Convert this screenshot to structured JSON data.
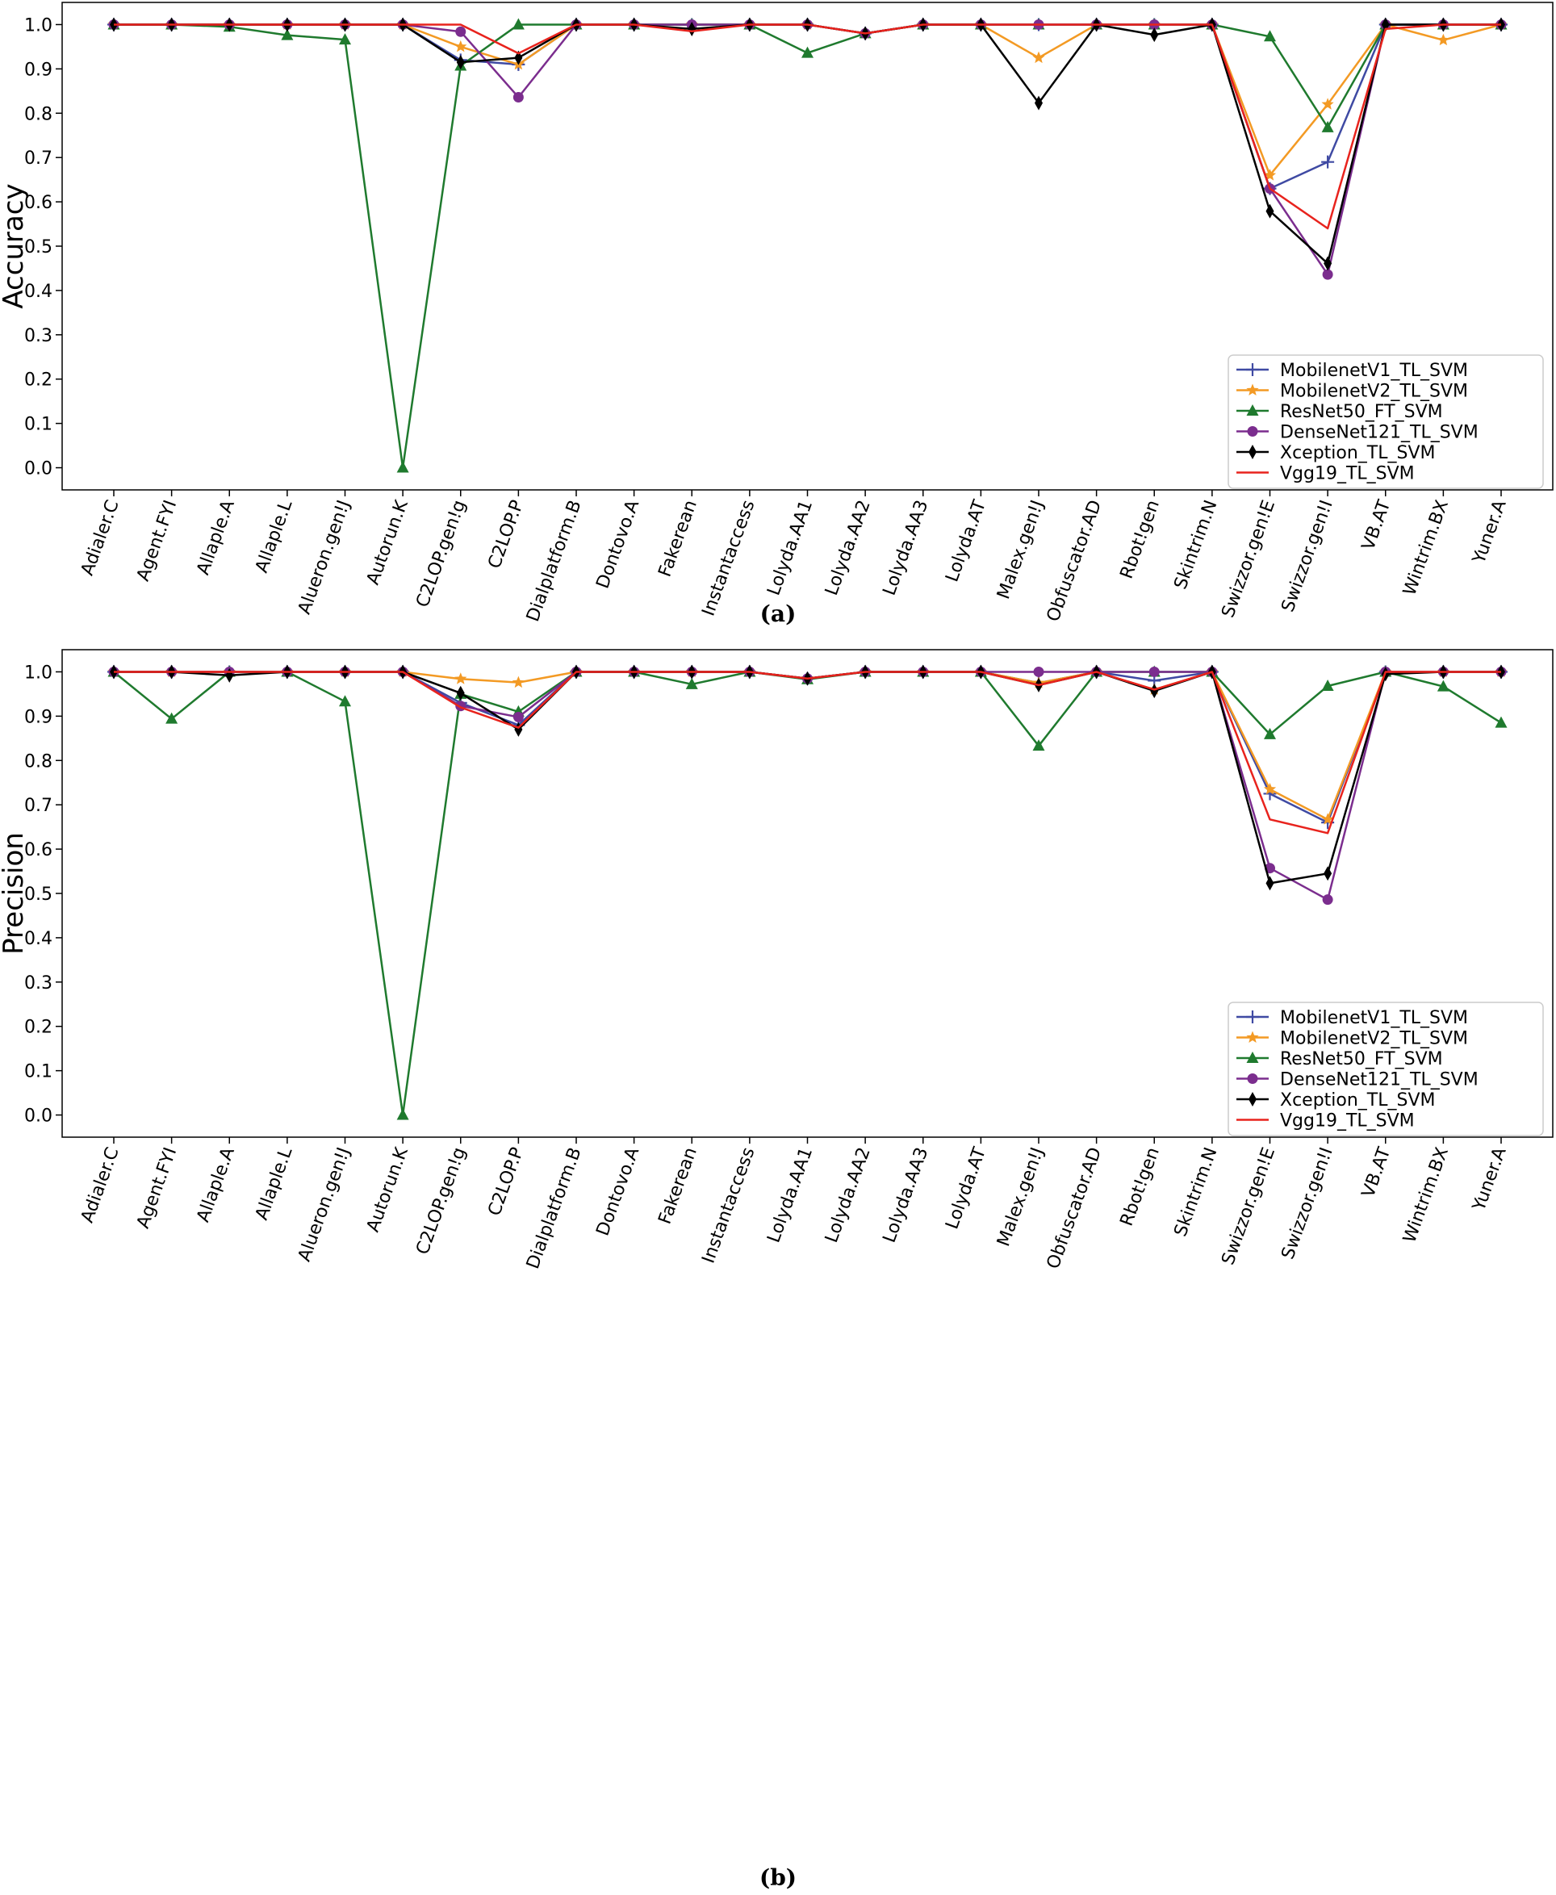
{
  "chart_data": [
    {
      "type": "line",
      "caption": "(a)",
      "title": "",
      "xlabel": "",
      "ylabel": "Accuracy",
      "ylim": [
        -0.05,
        1.05
      ],
      "yticks": [
        "0.0",
        "0.1",
        "0.2",
        "0.3",
        "0.4",
        "0.5",
        "0.6",
        "0.7",
        "0.8",
        "0.9",
        "1.0"
      ],
      "legend_position": "lower-right",
      "categories": [
        "Adialer.C",
        "Agent.FYI",
        "Allaple.A",
        "Allaple.L",
        "Alueron.gen!J",
        "Autorun.K",
        "C2LOP.gen!g",
        "C2LOP.P",
        "Dialplatform.B",
        "Dontovo.A",
        "Fakerean",
        "Instantaccess",
        "Lolyda.AA1",
        "Lolyda.AA2",
        "Lolyda.AA3",
        "Lolyda.AT",
        "Malex.gen!J",
        "Obfuscator.AD",
        "Rbot!gen",
        "Skintrim.N",
        "Swizzor.gen!E",
        "Swizzor.gen!I",
        "VB.AT",
        "Wintrim.BX",
        "Yuner.A"
      ],
      "series": [
        {
          "name": "MobilenetV1_TL_SVM",
          "color": "#3f4aa3",
          "marker": "plus",
          "values": [
            1.0,
            1.0,
            1.0,
            1.0,
            1.0,
            1.0,
            0.92,
            0.91,
            1.0,
            1.0,
            1.0,
            1.0,
            1.0,
            0.98,
            1.0,
            1.0,
            1.0,
            1.0,
            1.0,
            1.0,
            0.63,
            0.69,
            1.0,
            1.0,
            1.0
          ]
        },
        {
          "name": "MobilenetV2_TL_SVM",
          "color": "#f39a24",
          "marker": "star",
          "values": [
            1.0,
            1.0,
            1.0,
            1.0,
            1.0,
            1.0,
            0.95,
            0.91,
            1.0,
            1.0,
            1.0,
            1.0,
            1.0,
            0.98,
            1.0,
            1.0,
            0.925,
            1.0,
            1.0,
            1.0,
            0.66,
            0.82,
            1.0,
            0.965,
            1.0
          ]
        },
        {
          "name": "ResNet50_FT_SVM",
          "color": "#1f7a2e",
          "marker": "triangle",
          "values": [
            1.0,
            1.0,
            0.995,
            0.976,
            0.966,
            0.0,
            0.907,
            1.0,
            1.0,
            1.0,
            1.0,
            1.0,
            0.936,
            0.98,
            1.0,
            1.0,
            1.0,
            1.0,
            1.0,
            1.0,
            0.973,
            0.768,
            1.0,
            1.0,
            1.0
          ]
        },
        {
          "name": "DenseNet121_TL_SVM",
          "color": "#7b2d8e",
          "marker": "circle",
          "values": [
            1.0,
            1.0,
            1.0,
            1.0,
            1.0,
            1.0,
            0.984,
            0.836,
            1.0,
            1.0,
            1.0,
            1.0,
            1.0,
            0.98,
            1.0,
            1.0,
            1.0,
            1.0,
            1.0,
            1.0,
            0.63,
            0.436,
            1.0,
            1.0,
            1.0
          ]
        },
        {
          "name": "Xception_TL_SVM",
          "color": "#000000",
          "marker": "diamond",
          "values": [
            1.0,
            1.0,
            1.0,
            1.0,
            1.0,
            1.0,
            0.915,
            0.925,
            1.0,
            1.0,
            0.99,
            1.0,
            1.0,
            0.98,
            1.0,
            1.0,
            0.823,
            1.0,
            0.977,
            1.0,
            0.579,
            0.461,
            1.0,
            1.0,
            1.0
          ]
        },
        {
          "name": "Vgg19_TL_SVM",
          "color": "#e8231d",
          "marker": "none",
          "values": [
            1.0,
            1.0,
            1.0,
            1.0,
            1.0,
            1.0,
            1.0,
            0.935,
            1.0,
            1.0,
            0.985,
            1.0,
            1.0,
            0.98,
            1.0,
            1.0,
            1.0,
            1.0,
            1.0,
            1.0,
            0.63,
            0.54,
            0.99,
            1.0,
            1.0
          ]
        }
      ]
    },
    {
      "type": "line",
      "caption": "(b)",
      "title": "",
      "xlabel": "",
      "ylabel": "Precision",
      "ylim": [
        -0.05,
        1.05
      ],
      "yticks": [
        "0.0",
        "0.1",
        "0.2",
        "0.3",
        "0.4",
        "0.5",
        "0.6",
        "0.7",
        "0.8",
        "0.9",
        "1.0"
      ],
      "legend_position": "lower-right",
      "categories": [
        "Adialer.C",
        "Agent.FYI",
        "Allaple.A",
        "Allaple.L",
        "Alueron.gen!J",
        "Autorun.K",
        "C2LOP.gen!g",
        "C2LOP.P",
        "Dialplatform.B",
        "Dontovo.A",
        "Fakerean",
        "Instantaccess",
        "Lolyda.AA1",
        "Lolyda.AA2",
        "Lolyda.AA3",
        "Lolyda.AT",
        "Malex.gen!J",
        "Obfuscator.AD",
        "Rbot!gen",
        "Skintrim.N",
        "Swizzor.gen!E",
        "Swizzor.gen!I",
        "VB.AT",
        "Wintrim.BX",
        "Yuner.A"
      ],
      "series": [
        {
          "name": "MobilenetV1_TL_SVM",
          "color": "#3f4aa3",
          "marker": "plus",
          "values": [
            1.0,
            1.0,
            1.0,
            1.0,
            1.0,
            1.0,
            0.93,
            0.88,
            1.0,
            1.0,
            1.0,
            1.0,
            0.985,
            1.0,
            1.0,
            1.0,
            0.975,
            1.0,
            0.98,
            1.0,
            0.725,
            0.66,
            1.0,
            1.0,
            1.0
          ]
        },
        {
          "name": "MobilenetV2_TL_SVM",
          "color": "#f39a24",
          "marker": "star",
          "values": [
            1.0,
            1.0,
            1.0,
            1.0,
            1.0,
            1.0,
            0.984,
            0.976,
            1.0,
            1.0,
            1.0,
            1.0,
            0.985,
            1.0,
            1.0,
            1.0,
            0.975,
            1.0,
            0.96,
            1.0,
            0.735,
            0.667,
            1.0,
            1.0,
            1.0
          ]
        },
        {
          "name": "ResNet50_FT_SVM",
          "color": "#1f7a2e",
          "marker": "triangle",
          "values": [
            1.0,
            0.894,
            1.0,
            1.0,
            0.933,
            0.0,
            0.95,
            0.91,
            1.0,
            1.0,
            0.972,
            1.0,
            0.983,
            1.0,
            1.0,
            1.0,
            0.833,
            1.0,
            1.0,
            1.0,
            0.859,
            0.968,
            1.0,
            0.967,
            0.885
          ]
        },
        {
          "name": "DenseNet121_TL_SVM",
          "color": "#7b2d8e",
          "marker": "circle",
          "values": [
            1.0,
            1.0,
            1.0,
            1.0,
            1.0,
            1.0,
            0.923,
            0.898,
            1.0,
            1.0,
            1.0,
            1.0,
            0.985,
            1.0,
            1.0,
            1.0,
            1.0,
            1.0,
            1.0,
            1.0,
            0.557,
            0.486,
            1.0,
            1.0,
            1.0
          ]
        },
        {
          "name": "Xception_TL_SVM",
          "color": "#000000",
          "marker": "diamond",
          "values": [
            1.0,
            1.0,
            0.992,
            1.0,
            1.0,
            1.0,
            0.952,
            0.87,
            1.0,
            1.0,
            1.0,
            1.0,
            0.985,
            1.0,
            1.0,
            1.0,
            0.97,
            1.0,
            0.957,
            1.0,
            0.523,
            0.545,
            0.995,
            1.0,
            1.0
          ]
        },
        {
          "name": "Vgg19_TL_SVM",
          "color": "#e8231d",
          "marker": "none",
          "values": [
            1.0,
            1.0,
            1.0,
            1.0,
            1.0,
            1.0,
            0.92,
            0.874,
            1.0,
            1.0,
            1.0,
            1.0,
            0.985,
            1.0,
            1.0,
            1.0,
            0.97,
            1.0,
            0.96,
            1.0,
            0.667,
            0.636,
            1.0,
            1.0,
            1.0
          ]
        }
      ]
    }
  ]
}
